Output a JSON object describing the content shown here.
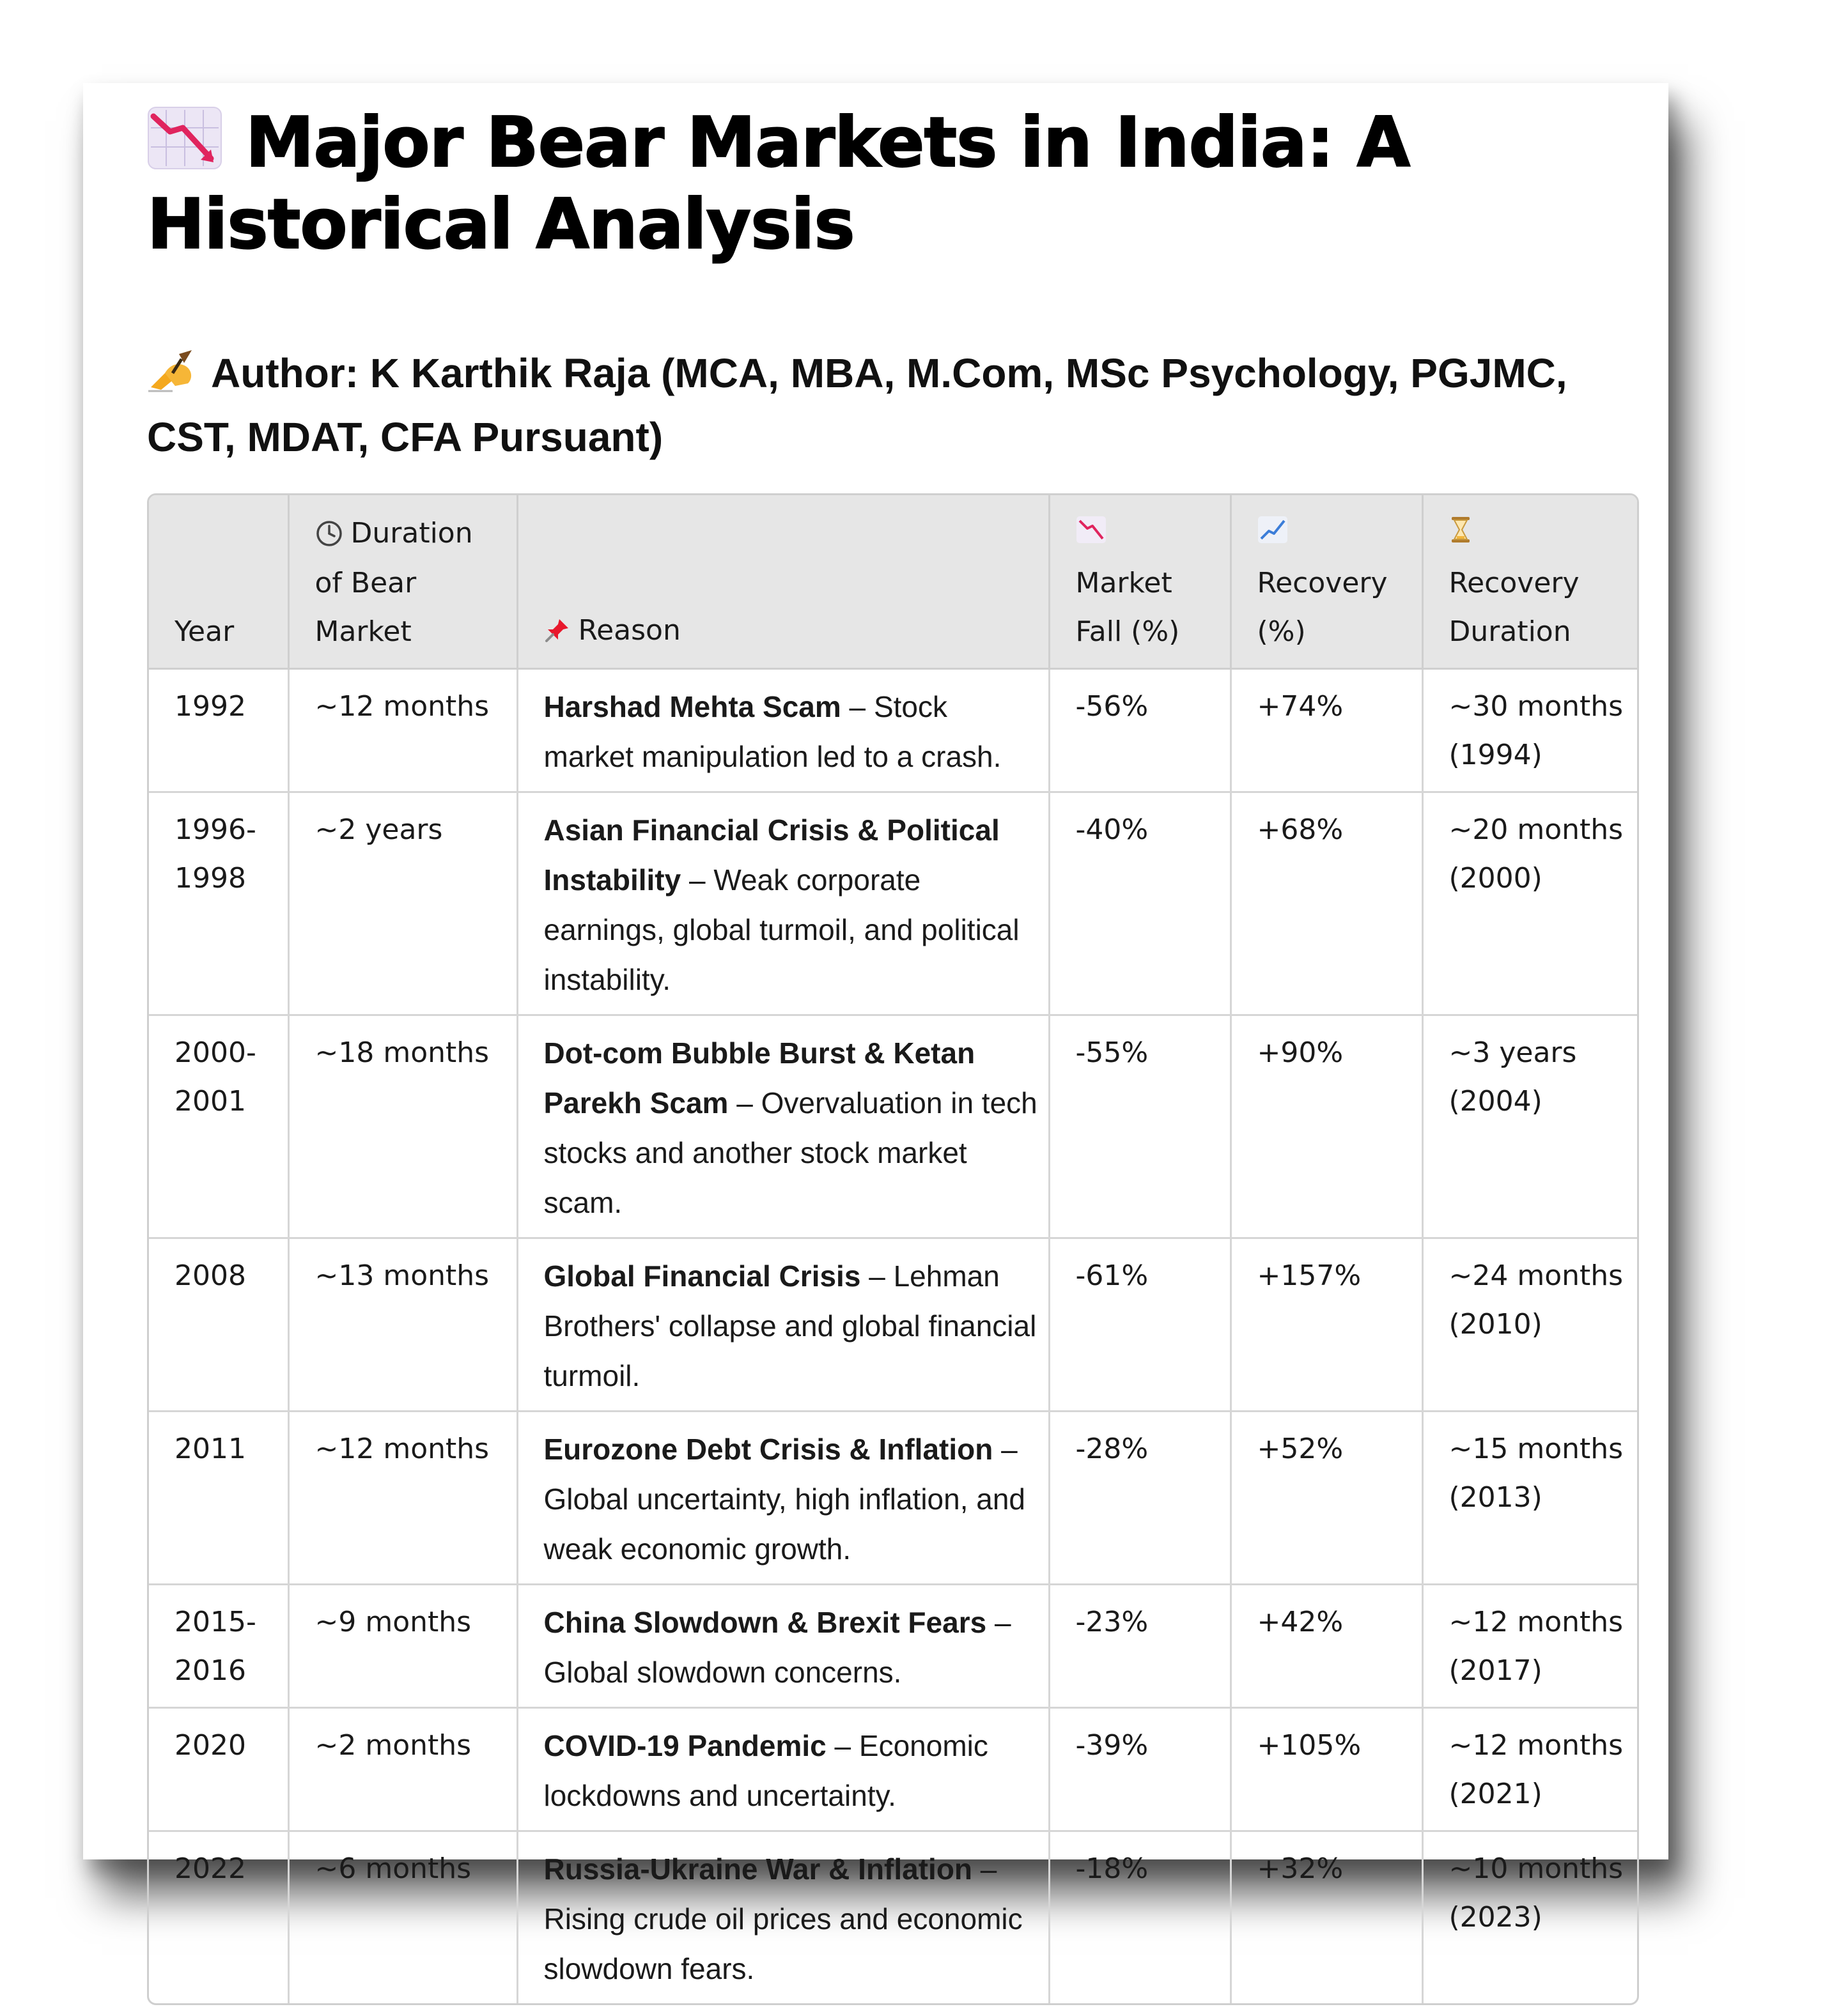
{
  "title": "Major Bear Markets in India: A Historical Analysis",
  "title_icon": "chart-decreasing-icon",
  "author": "Author: K Karthik Raja (MCA, MBA, M.Com, MSc Psychology, PGJMC, CST, MDAT, CFA Pursuant)",
  "author_icon": "writing-hand-icon",
  "table": {
    "headers": {
      "year": "Year",
      "duration": "Duration of Bear Market",
      "reason": "Reason",
      "fall": "Market Fall (%)",
      "recovery": "Recovery (%)",
      "recovery_duration": "Recovery Duration"
    },
    "header_icons": {
      "duration": "clock-icon",
      "reason": "pushpin-icon",
      "fall": "chart-decreasing-icon",
      "recovery": "chart-increasing-icon",
      "recovery_duration": "hourglass-icon"
    },
    "rows": [
      {
        "year": "1992",
        "duration": "~12 months",
        "reason_title": "Harshad Mehta Scam",
        "reason_text": "Stock market manipulation led to a crash.",
        "fall": "-56%",
        "recovery": "+74%",
        "recovery_duration": "~30 months (1994)"
      },
      {
        "year": "1996-1998",
        "duration": "~2 years",
        "reason_title": "Asian Financial Crisis & Political Instability",
        "reason_text": "Weak corporate earnings, global turmoil, and political instability.",
        "fall": "-40%",
        "recovery": "+68%",
        "recovery_duration": "~20 months (2000)"
      },
      {
        "year": "2000-2001",
        "duration": "~18 months",
        "reason_title": "Dot-com Bubble Burst & Ketan Parekh Scam",
        "reason_text": "Overvaluation in tech stocks and another stock market scam.",
        "fall": "-55%",
        "recovery": "+90%",
        "recovery_duration": "~3 years (2004)"
      },
      {
        "year": "2008",
        "duration": "~13 months",
        "reason_title": "Global Financial Crisis",
        "reason_text": "Lehman Brothers' collapse and global financial turmoil.",
        "fall": "-61%",
        "recovery": "+157%",
        "recovery_duration": "~24 months (2010)"
      },
      {
        "year": "2011",
        "duration": "~12 months",
        "reason_title": "Eurozone Debt Crisis & Inflation",
        "reason_text": "Global uncertainty, high inflation, and weak economic growth.",
        "fall": "-28%",
        "recovery": "+52%",
        "recovery_duration": "~15 months (2013)"
      },
      {
        "year": "2015-2016",
        "duration": "~9 months",
        "reason_title": "China Slowdown & Brexit Fears",
        "reason_text": "Global slowdown concerns.",
        "fall": "-23%",
        "recovery": "+42%",
        "recovery_duration": "~12 months (2017)"
      },
      {
        "year": "2020",
        "duration": "~2 months",
        "reason_title": "COVID-19 Pandemic",
        "reason_text": "Economic lockdowns and uncertainty.",
        "fall": "-39%",
        "recovery": "+105%",
        "recovery_duration": "~12 months (2021)"
      },
      {
        "year": "2022",
        "duration": "~6 months",
        "reason_title": "Russia-Ukraine War & Inflation",
        "reason_text": "Rising crude oil prices and economic slowdown fears.",
        "fall": "-18%",
        "recovery": "+32%",
        "recovery_duration": "~10 months (2023)"
      }
    ]
  },
  "colors": {
    "header_bg": "#e6e6e6",
    "border": "#cfcfcf",
    "chart_down_line": "#e0245e",
    "icon_tile": "#ece6f5",
    "pushpin": "#e8182c",
    "hourglass": "#f2b63c",
    "hand": "#f4a81d"
  }
}
